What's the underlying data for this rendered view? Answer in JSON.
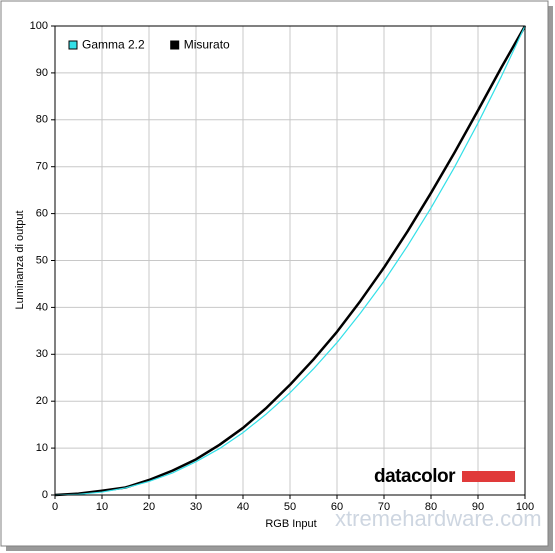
{
  "chart_data": {
    "type": "line",
    "xlabel": "RGB Input",
    "ylabel": "Luminanza di output",
    "x": [
      0,
      5,
      10,
      15,
      20,
      25,
      30,
      35,
      40,
      45,
      50,
      55,
      60,
      65,
      70,
      75,
      80,
      85,
      90,
      95,
      100
    ],
    "series": [
      {
        "name": "Misurato",
        "color": "#000000",
        "values": [
          0,
          0.3,
          0.9,
          1.6,
          3.2,
          5.2,
          7.6,
          10.7,
          14.3,
          18.6,
          23.5,
          28.9,
          34.8,
          41.4,
          48.5,
          56.2,
          64.4,
          73.0,
          82.0,
          91.2,
          100
        ]
      },
      {
        "name": "Gamma 2.2",
        "color": "#33e0e8",
        "values": [
          0,
          0.14,
          0.63,
          1.5,
          2.9,
          4.7,
          7.1,
          9.9,
          13.3,
          17.3,
          21.8,
          26.9,
          32.5,
          38.8,
          45.6,
          53.1,
          61.2,
          69.9,
          79.3,
          89.3,
          100
        ]
      }
    ],
    "xlim": [
      0,
      100
    ],
    "ylim": [
      0,
      100
    ],
    "xticks": [
      0,
      10,
      20,
      30,
      40,
      50,
      60,
      70,
      80,
      90,
      100
    ],
    "yticks": [
      0,
      10,
      20,
      30,
      40,
      50,
      60,
      70,
      80,
      90,
      100
    ],
    "grid": true,
    "legend": "top-left",
    "annotations": [
      "datacolor",
      "xtremehardware.com"
    ]
  }
}
